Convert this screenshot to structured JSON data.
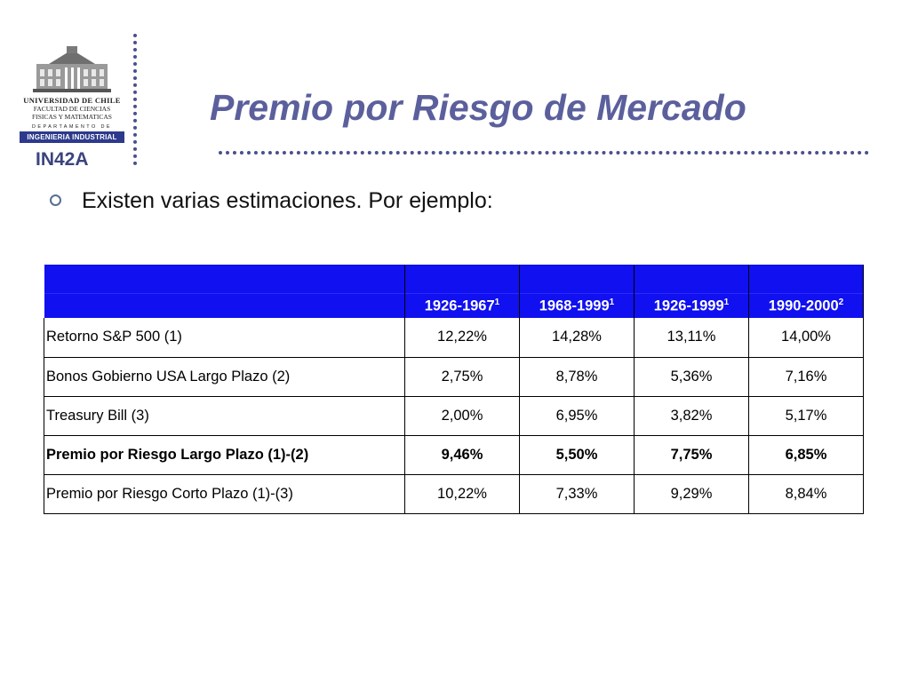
{
  "logo": {
    "university": "UNIVERSIDAD DE CHILE",
    "faculty_line1": "FACULTAD DE CIENCIAS",
    "faculty_line2": "FISICAS Y MATEMATICAS",
    "department": "DEPARTAMENTO DE",
    "department_name": "INGENIERIA INDUSTRIAL"
  },
  "course_code": "IN42A",
  "title": "Premio por Riesgo de Mercado",
  "intro": "Existen varias estimaciones. Por ejemplo:",
  "table": {
    "headers": [
      {
        "period": "1926-1967",
        "note": "1"
      },
      {
        "period": "1968-1999",
        "note": "1"
      },
      {
        "period": "1926-1999",
        "note": "1"
      },
      {
        "period": "1990-2000",
        "note": "2"
      }
    ],
    "rows": [
      {
        "label": "Retorno S&P 500 (1)",
        "values": [
          "12,22%",
          "14,28%",
          "13,11%",
          "14,00%"
        ]
      },
      {
        "label": "Bonos Gobierno USA Largo Plazo (2)",
        "values": [
          "2,75%",
          "8,78%",
          "5,36%",
          "7,16%"
        ]
      },
      {
        "label": "Treasury Bill (3)",
        "values": [
          "2,00%",
          "6,95%",
          "3,82%",
          "5,17%"
        ]
      },
      {
        "label": "Premio por Riesgo Largo Plazo (1)-(2)",
        "values": [
          "9,46%",
          "5,50%",
          "7,75%",
          "6,85%"
        ]
      },
      {
        "label": "Premio por Riesgo Corto Plazo (1)-(3)",
        "values": [
          "10,22%",
          "7,33%",
          "9,29%",
          "8,84%"
        ]
      }
    ]
  },
  "colors": {
    "title": "#5b5f9c",
    "header_fill": "#1010f0",
    "dotted_lines": "#4a4f8f"
  }
}
